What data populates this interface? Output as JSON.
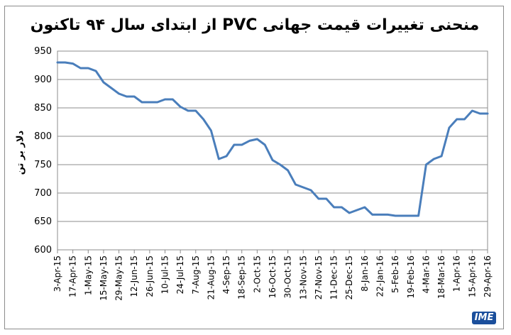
{
  "chart_data": {
    "type": "line",
    "title": "منحنی تغییرات قیمت جهانی PVC از ابتدای سال ۹۴ تاکنون",
    "ylabel": "دلار بر تن",
    "xlabel": "",
    "ylim": [
      600,
      950
    ],
    "yticks": [
      600,
      650,
      700,
      750,
      800,
      850,
      900,
      950
    ],
    "grid": true,
    "x_tick_labels": [
      "3-Apr-15",
      "17-Apr-15",
      "1-May-15",
      "15-May-15",
      "29-May-15",
      "12-Jun-15",
      "26-Jun-15",
      "10-Jul-15",
      "24-Jul-15",
      "7-Aug-15",
      "21-Aug-15",
      "4-Sep-15",
      "18-Sep-15",
      "2-Oct-15",
      "16-Oct-15",
      "30-Oct-15",
      "13-Nov-15",
      "27-Nov-15",
      "11-Dec-15",
      "25-Dec-15",
      "8-Jan-16",
      "22-Jan-16",
      "5-Feb-16",
      "19-Feb-16",
      "4-Mar-16",
      "18-Mar-16",
      "1-Apr-16",
      "15-Apr-16",
      "29-Apr-16"
    ],
    "series": [
      {
        "color": "#4a7ebb",
        "values": [
          930,
          930,
          928,
          920,
          920,
          915,
          895,
          885,
          875,
          870,
          870,
          860,
          860,
          860,
          865,
          865,
          852,
          845,
          845,
          830,
          810,
          760,
          765,
          785,
          785,
          792,
          795,
          785,
          758,
          750,
          740,
          715,
          710,
          705,
          690,
          690,
          675,
          675,
          665,
          670,
          675,
          662,
          662,
          662,
          660,
          660,
          660,
          660,
          750,
          760,
          765,
          815,
          830,
          830,
          845,
          840,
          840
        ]
      }
    ],
    "logo_text": "IME"
  }
}
